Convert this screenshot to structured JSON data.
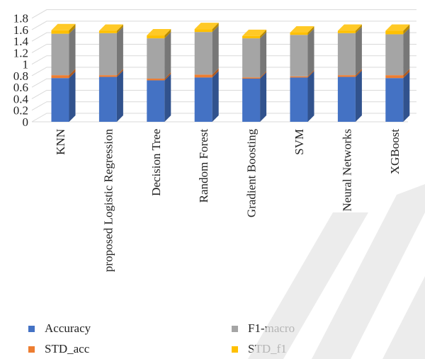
{
  "chart_data": {
    "type": "bar",
    "stacked": true,
    "style": "3d",
    "categories": [
      "KNN",
      "proposed Logistic Regression",
      "Decision Tree",
      "Random Forest",
      "Gradient Boosting",
      "SVM",
      "Neural Networks",
      "XGBoost"
    ],
    "series": [
      {
        "name": "Accuracy",
        "color": "#4472C4",
        "values": [
          0.76,
          0.78,
          0.72,
          0.77,
          0.75,
          0.77,
          0.78,
          0.76
        ]
      },
      {
        "name": "STD_acc",
        "color": "#ED7D31",
        "values": [
          0.05,
          0.03,
          0.03,
          0.05,
          0.02,
          0.02,
          0.03,
          0.05
        ]
      },
      {
        "name": "F1-macro",
        "color": "#A5A5A5",
        "values": [
          0.72,
          0.73,
          0.7,
          0.74,
          0.68,
          0.72,
          0.73,
          0.71
        ]
      },
      {
        "name": "STD_f1",
        "color": "#FFC000",
        "values": [
          0.06,
          0.04,
          0.05,
          0.05,
          0.04,
          0.04,
          0.04,
          0.06
        ]
      }
    ],
    "ylim": [
      0,
      1.8
    ],
    "yticks": [
      "0",
      "0.2",
      "0.4",
      "0.6",
      "0.8",
      "1",
      "1.2",
      "1.4",
      "1.6",
      "1.8"
    ],
    "grid": true,
    "legend_position": "bottom",
    "title": "",
    "xlabel": "",
    "ylabel": ""
  }
}
